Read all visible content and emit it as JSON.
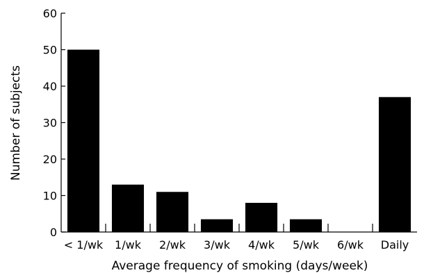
{
  "chart_data": {
    "type": "bar",
    "title": "",
    "xlabel": "Average frequency of smoking (days/week)",
    "ylabel": "Number of subjects",
    "categories": [
      "< 1/wk",
      "1/wk",
      "2/wk",
      "3/wk",
      "4/wk",
      "5/wk",
      "6/wk",
      "Daily"
    ],
    "values": [
      50,
      13,
      11,
      3.5,
      8,
      3.5,
      0,
      37
    ],
    "ylim": [
      0,
      60
    ],
    "yticks": [
      0,
      10,
      20,
      30,
      40,
      50,
      60
    ],
    "grid": false,
    "legend": "none",
    "bar_color": "#000000"
  }
}
